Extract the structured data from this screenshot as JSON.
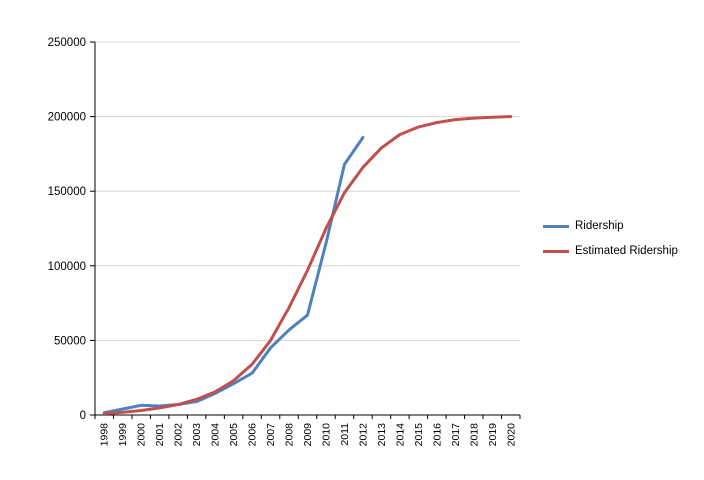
{
  "chart_data": {
    "type": "line",
    "title": "",
    "xlabel": "",
    "ylabel": "",
    "grid": true,
    "legend_position": "right",
    "ylim": [
      0,
      250000
    ],
    "yticks": [
      0,
      50000,
      100000,
      150000,
      200000,
      250000
    ],
    "categories": [
      "1998",
      "1999",
      "2000",
      "2001",
      "2002",
      "2003",
      "2004",
      "2005",
      "2006",
      "2007",
      "2008",
      "2009",
      "2010",
      "2011",
      "2012",
      "2013",
      "2014",
      "2015",
      "2016",
      "2017",
      "2018",
      "2019",
      "2020"
    ],
    "series": [
      {
        "name": "Ridership",
        "color": "#4f81bd",
        "values": [
          1500,
          4000,
          6500,
          6000,
          7000,
          9000,
          14500,
          21000,
          28000,
          45000,
          57000,
          67000,
          115000,
          168000,
          186000,
          null,
          null,
          null,
          null,
          null,
          null,
          null,
          null
        ]
      },
      {
        "name": "Estimated Ridership",
        "color": "#c0504d",
        "values": [
          1000,
          1800,
          3000,
          4800,
          7000,
          10500,
          15500,
          23000,
          34000,
          50000,
          72000,
          97000,
          125000,
          149000,
          166000,
          179000,
          188000,
          193000,
          196000,
          198000,
          199000,
          199600,
          200000
        ]
      }
    ]
  },
  "legend": {
    "items": [
      {
        "label": "Ridership",
        "color": "#4f81bd"
      },
      {
        "label": "Estimated Ridership",
        "color": "#c0504d"
      }
    ]
  },
  "colors": {
    "background": "#ffffff",
    "gridline": "#d6d6d6",
    "axis": "#000000",
    "text": "#000000"
  }
}
